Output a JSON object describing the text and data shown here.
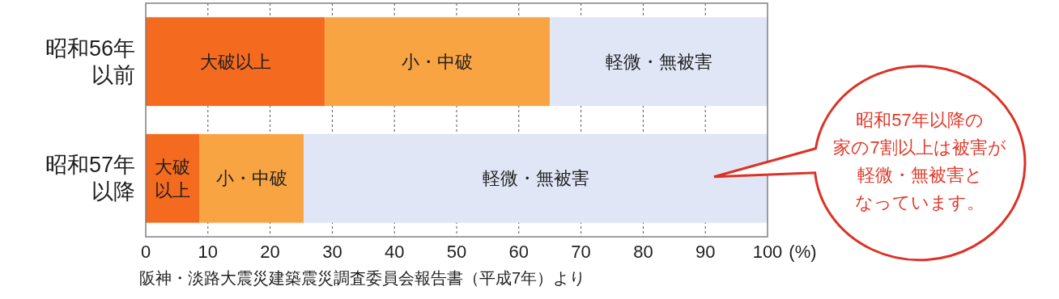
{
  "chart_data": {
    "type": "bar",
    "orientation": "horizontal",
    "stacked": true,
    "categories": [
      "昭和56年以前",
      "昭和57年以降"
    ],
    "series": [
      {
        "name": "大破以上",
        "color": "#f46a1f",
        "values": [
          28.8,
          8.6
        ]
      },
      {
        "name": "小・中破",
        "color": "#f9a443",
        "values": [
          36.2,
          16.8
        ]
      },
      {
        "name": "軽微・無被害",
        "color": "#e0e6f6",
        "values": [
          35.0,
          74.6
        ]
      }
    ],
    "xlim": [
      0,
      100
    ],
    "xticks": [
      0,
      10,
      20,
      30,
      40,
      50,
      60,
      70,
      80,
      90,
      100
    ],
    "xlabel": "(%)",
    "grid": "x",
    "annotations": [
      "昭和57年以降の家の7割以上は被害が軽微・無被害となっています。",
      "阪神・淡路大震災建築震災調査委員会報告書（平成7年）より"
    ]
  }
}
